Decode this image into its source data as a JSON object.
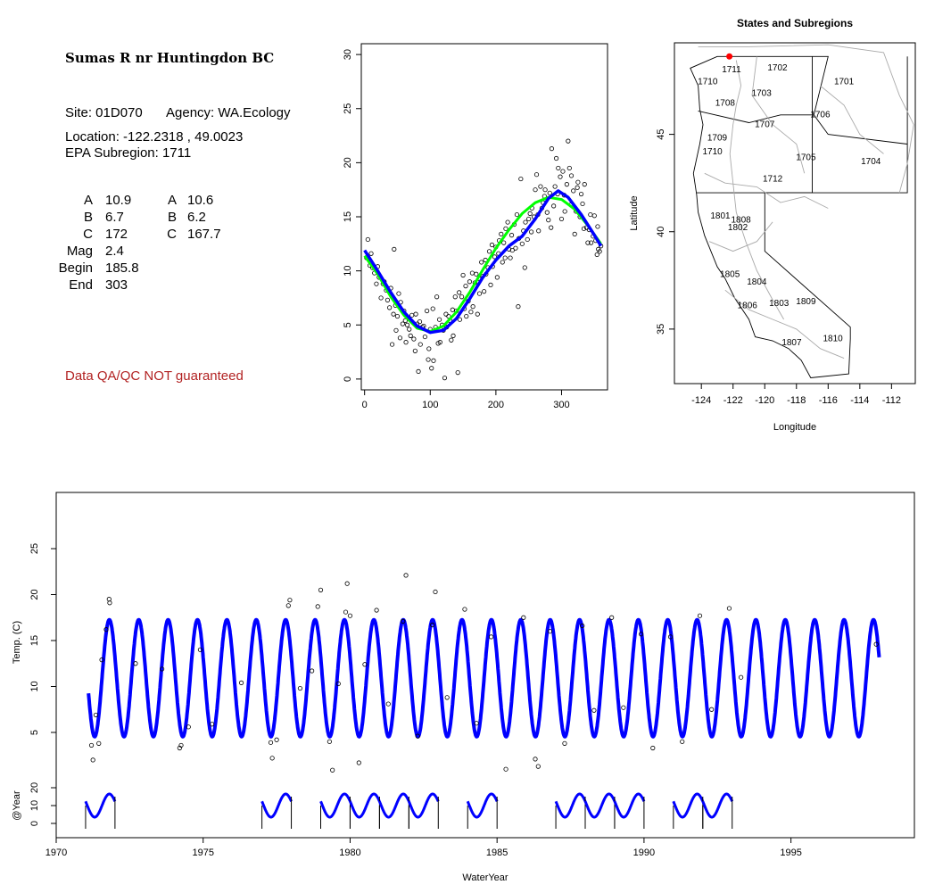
{
  "site": {
    "title": "Sumas R nr Huntingdon BC",
    "site_line": "Site: 01D070",
    "agency_line": "Agency: WA.Ecology",
    "location_line": "Location: -122.2318 , 49.0023",
    "subregion_line": "EPA Subregion: 1711",
    "params_left": [
      {
        "label": "A",
        "value": "10.9"
      },
      {
        "label": "B",
        "value": "6.7"
      },
      {
        "label": "C",
        "value": "172"
      },
      {
        "label": "Mag",
        "value": "2.4"
      },
      {
        "label": "Begin",
        "value": "185.8"
      },
      {
        "label": "End",
        "value": "303"
      }
    ],
    "params_right": [
      {
        "label": "A",
        "value": "10.6"
      },
      {
        "label": "B",
        "value": "6.2"
      },
      {
        "label": "C",
        "value": "167.7"
      }
    ],
    "qa_note": "Data QA/QC NOT guaranteed"
  },
  "colors": {
    "fit_blue": "#0000ff",
    "fit_green": "#00ff00",
    "qa_red": "#b22222",
    "site_marker": "#ff0000",
    "region_border": "#aaaaaa"
  },
  "map": {
    "title": "States and Subregions",
    "xlabel": "Longitude",
    "ylabel": "Latitude",
    "xticks": [
      "-124",
      "-122",
      "-120",
      "-118",
      "-116",
      "-114",
      "-112"
    ],
    "yticks": [
      "35",
      "40",
      "45"
    ],
    "xlim": [
      -125.7,
      -110.5
    ],
    "ylim": [
      32.2,
      49.7
    ],
    "site_marker": {
      "lon": -122.2318,
      "lat": 49.0023
    },
    "region_labels": [
      {
        "label": "1711",
        "lon": -122.1,
        "lat": 48.3
      },
      {
        "label": "1702",
        "lon": -119.2,
        "lat": 48.4
      },
      {
        "label": "1701",
        "lon": -115.0,
        "lat": 47.7
      },
      {
        "label": "1710",
        "lon": -123.6,
        "lat": 47.7
      },
      {
        "label": "1703",
        "lon": -120.2,
        "lat": 47.1
      },
      {
        "label": "1708",
        "lon": -122.5,
        "lat": 46.6
      },
      {
        "label": "1706",
        "lon": -116.5,
        "lat": 46.0
      },
      {
        "label": "1707",
        "lon": -120.0,
        "lat": 45.5
      },
      {
        "label": "1709",
        "lon": -123.0,
        "lat": 44.8
      },
      {
        "label": "1710",
        "lon": -123.3,
        "lat": 44.1
      },
      {
        "label": "1705",
        "lon": -117.4,
        "lat": 43.8
      },
      {
        "label": "1704",
        "lon": -113.3,
        "lat": 43.6
      },
      {
        "label": "1712",
        "lon": -119.5,
        "lat": 42.7
      },
      {
        "label": "1801",
        "lon": -122.8,
        "lat": 40.8
      },
      {
        "label": "1808",
        "lon": -121.5,
        "lat": 40.6
      },
      {
        "label": "1802",
        "lon": -121.7,
        "lat": 40.2
      },
      {
        "label": "1805",
        "lon": -122.2,
        "lat": 37.8
      },
      {
        "label": "1804",
        "lon": -120.5,
        "lat": 37.4
      },
      {
        "label": "1806",
        "lon": -121.1,
        "lat": 36.2
      },
      {
        "label": "1803",
        "lon": -119.1,
        "lat": 36.3
      },
      {
        "label": "1809",
        "lon": -117.4,
        "lat": 36.4
      },
      {
        "label": "1807",
        "lon": -118.3,
        "lat": 34.3
      },
      {
        "label": "1810",
        "lon": -115.7,
        "lat": 34.5
      }
    ]
  },
  "chart_data": [
    {
      "type": "scatter",
      "title": "",
      "xlabel": "",
      "ylabel": "",
      "xlim": [
        -5,
        370
      ],
      "ylim": [
        -1,
        31
      ],
      "xticks": [
        "0",
        "100",
        "200",
        "300"
      ],
      "yticks": [
        "0",
        "5",
        "10",
        "15",
        "20",
        "25",
        "30"
      ],
      "fit_blue": {
        "x": [
          0,
          20,
          40,
          60,
          80,
          100,
          120,
          140,
          160,
          180,
          200,
          220,
          240,
          260,
          280,
          295,
          310,
          330,
          350,
          360
        ],
        "y": [
          11.9,
          10.0,
          8.0,
          6.2,
          4.9,
          4.3,
          4.5,
          5.6,
          7.4,
          9.4,
          11.0,
          12.3,
          13.2,
          14.8,
          16.7,
          17.4,
          16.8,
          15.2,
          13.3,
          12.3
        ]
      },
      "fit_green": {
        "x": [
          0,
          20,
          40,
          60,
          80,
          100,
          120,
          140,
          160,
          180,
          200,
          220,
          240,
          260,
          280,
          300,
          320,
          340,
          360
        ],
        "y": [
          11.4,
          9.7,
          7.6,
          5.9,
          4.7,
          4.4,
          4.9,
          6.2,
          8.0,
          10.1,
          12.1,
          13.8,
          15.3,
          16.3,
          16.8,
          16.6,
          15.7,
          14.2,
          12.5
        ]
      },
      "points": [
        [
          3,
          11.2
        ],
        [
          5,
          12.9
        ],
        [
          8,
          10.5
        ],
        [
          10,
          11.6
        ],
        [
          12,
          10.3
        ],
        [
          15,
          9.8
        ],
        [
          18,
          8.8
        ],
        [
          20,
          10.4
        ],
        [
          22,
          9.4
        ],
        [
          25,
          7.5
        ],
        [
          28,
          8.8
        ],
        [
          30,
          9.0
        ],
        [
          33,
          8.2
        ],
        [
          35,
          7.3
        ],
        [
          38,
          6.6
        ],
        [
          40,
          8.4
        ],
        [
          42,
          3.2
        ],
        [
          44,
          6.0
        ],
        [
          45,
          12.0
        ],
        [
          47,
          6.8
        ],
        [
          48,
          4.5
        ],
        [
          50,
          5.8
        ],
        [
          52,
          7.9
        ],
        [
          54,
          3.8
        ],
        [
          55,
          7.1
        ],
        [
          58,
          5.1
        ],
        [
          60,
          6.3
        ],
        [
          62,
          5.4
        ],
        [
          63,
          3.4
        ],
        [
          65,
          5.0
        ],
        [
          68,
          4.6
        ],
        [
          70,
          4.0
        ],
        [
          72,
          5.9
        ],
        [
          75,
          3.7
        ],
        [
          77,
          2.6
        ],
        [
          78,
          6.0
        ],
        [
          80,
          5.1
        ],
        [
          82,
          0.7
        ],
        [
          84,
          5.3
        ],
        [
          85,
          3.2
        ],
        [
          88,
          4.8
        ],
        [
          90,
          4.9
        ],
        [
          92,
          3.9
        ],
        [
          95,
          6.3
        ],
        [
          97,
          1.8
        ],
        [
          98,
          2.8
        ],
        [
          100,
          4.6
        ],
        [
          102,
          1.0
        ],
        [
          104,
          6.5
        ],
        [
          105,
          1.7
        ],
        [
          108,
          4.8
        ],
        [
          110,
          7.6
        ],
        [
          112,
          3.3
        ],
        [
          114,
          5.5
        ],
        [
          115,
          3.4
        ],
        [
          118,
          5.0
        ],
        [
          120,
          4.5
        ],
        [
          122,
          0.1
        ],
        [
          124,
          6.0
        ],
        [
          125,
          4.8
        ],
        [
          128,
          5.8
        ],
        [
          130,
          5.4
        ],
        [
          132,
          3.6
        ],
        [
          134,
          6.4
        ],
        [
          135,
          4.0
        ],
        [
          138,
          7.6
        ],
        [
          140,
          6.3
        ],
        [
          142,
          0.6
        ],
        [
          144,
          8.0
        ],
        [
          145,
          5.5
        ],
        [
          148,
          7.6
        ],
        [
          150,
          9.6
        ],
        [
          152,
          6.5
        ],
        [
          154,
          8.6
        ],
        [
          155,
          5.8
        ],
        [
          158,
          7.2
        ],
        [
          160,
          9.0
        ],
        [
          162,
          6.2
        ],
        [
          164,
          9.8
        ],
        [
          165,
          6.7
        ],
        [
          168,
          8.9
        ],
        [
          170,
          9.7
        ],
        [
          172,
          6.0
        ],
        [
          174,
          9.3
        ],
        [
          175,
          7.9
        ],
        [
          178,
          10.8
        ],
        [
          180,
          9.5
        ],
        [
          182,
          8.1
        ],
        [
          184,
          11.0
        ],
        [
          185,
          9.7
        ],
        [
          188,
          10.3
        ],
        [
          190,
          11.8
        ],
        [
          192,
          8.7
        ],
        [
          194,
          12.4
        ],
        [
          195,
          10.4
        ],
        [
          198,
          11.3
        ],
        [
          200,
          12.2
        ],
        [
          202,
          9.4
        ],
        [
          204,
          11.6
        ],
        [
          205,
          12.8
        ],
        [
          208,
          13.4
        ],
        [
          210,
          10.8
        ],
        [
          212,
          12.6
        ],
        [
          214,
          11.2
        ],
        [
          215,
          13.9
        ],
        [
          218,
          14.5
        ],
        [
          220,
          12.0
        ],
        [
          222,
          11.2
        ],
        [
          224,
          13.3
        ],
        [
          225,
          11.9
        ],
        [
          228,
          14.3
        ],
        [
          230,
          12.1
        ],
        [
          232,
          15.2
        ],
        [
          234,
          6.7
        ],
        [
          235,
          13.0
        ],
        [
          238,
          18.5
        ],
        [
          240,
          12.5
        ],
        [
          242,
          13.7
        ],
        [
          244,
          10.3
        ],
        [
          245,
          14.5
        ],
        [
          248,
          12.9
        ],
        [
          250,
          14.8
        ],
        [
          252,
          15.3
        ],
        [
          254,
          13.6
        ],
        [
          255,
          15.8
        ],
        [
          258,
          15.0
        ],
        [
          260,
          17.5
        ],
        [
          262,
          18.9
        ],
        [
          264,
          15.2
        ],
        [
          265,
          13.7
        ],
        [
          268,
          17.8
        ],
        [
          270,
          15.8
        ],
        [
          272,
          16.3
        ],
        [
          274,
          16.9
        ],
        [
          275,
          17.5
        ],
        [
          278,
          15.4
        ],
        [
          280,
          14.7
        ],
        [
          282,
          17.2
        ],
        [
          284,
          14.0
        ],
        [
          285,
          21.3
        ],
        [
          288,
          16.0
        ],
        [
          290,
          17.8
        ],
        [
          292,
          20.4
        ],
        [
          294,
          17.1
        ],
        [
          295,
          19.5
        ],
        [
          298,
          18.7
        ],
        [
          300,
          14.8
        ],
        [
          302,
          19.2
        ],
        [
          304,
          17.0
        ],
        [
          305,
          15.5
        ],
        [
          308,
          18.0
        ],
        [
          310,
          22.0
        ],
        [
          312,
          19.5
        ],
        [
          314,
          16.1
        ],
        [
          315,
          18.8
        ],
        [
          318,
          17.4
        ],
        [
          320,
          13.4
        ],
        [
          322,
          15.5
        ],
        [
          324,
          17.7
        ],
        [
          325,
          18.2
        ],
        [
          328,
          15.0
        ],
        [
          330,
          17.1
        ],
        [
          332,
          16.2
        ],
        [
          334,
          13.9
        ],
        [
          335,
          18.0
        ],
        [
          338,
          14.0
        ],
        [
          340,
          12.6
        ],
        [
          342,
          13.8
        ],
        [
          344,
          15.2
        ],
        [
          345,
          12.6
        ],
        [
          348,
          13.2
        ],
        [
          350,
          15.1
        ],
        [
          352,
          12.8
        ],
        [
          354,
          11.5
        ],
        [
          355,
          14.1
        ],
        [
          356,
          12.0
        ],
        [
          358,
          11.8
        ],
        [
          360,
          12.3
        ]
      ]
    },
    {
      "type": "line",
      "title": "",
      "xlabel": "WaterYear",
      "ylabel": "Temp. (C)",
      "xlim": [
        1970,
        1999.2
      ],
      "ylim": [
        0,
        30
      ],
      "yticks": [
        "5",
        "10",
        "15",
        "20",
        "25"
      ],
      "xticks": [
        "1970",
        "1975",
        "1980",
        "1985",
        "1990",
        "1995"
      ],
      "fit": {
        "x_start": 1971.1,
        "x_end": 1998.0,
        "A": 10.9,
        "B": 6.7,
        "peak_day": 295,
        "period_days": 365
      },
      "points": [
        [
          1971.2,
          3.6
        ],
        [
          1971.25,
          2.0
        ],
        [
          1971.35,
          6.9
        ],
        [
          1971.45,
          3.8
        ],
        [
          1971.55,
          12.9
        ],
        [
          1971.7,
          16.2
        ],
        [
          1971.8,
          19.5
        ],
        [
          1971.82,
          19.1
        ],
        [
          1972.7,
          12.5
        ],
        [
          1973.6,
          11.9
        ],
        [
          1974.2,
          3.3
        ],
        [
          1974.25,
          3.6
        ],
        [
          1974.5,
          5.6
        ],
        [
          1974.9,
          14.0
        ],
        [
          1975.3,
          5.9
        ],
        [
          1976.3,
          10.4
        ],
        [
          1977.3,
          3.9
        ],
        [
          1977.35,
          2.2
        ],
        [
          1977.5,
          4.2
        ],
        [
          1977.9,
          18.8
        ],
        [
          1977.95,
          19.4
        ],
        [
          1978.3,
          9.8
        ],
        [
          1978.7,
          11.7
        ],
        [
          1978.9,
          18.7
        ],
        [
          1979.0,
          20.5
        ],
        [
          1979.3,
          4.0
        ],
        [
          1979.4,
          0.9
        ],
        [
          1979.6,
          10.3
        ],
        [
          1979.85,
          18.1
        ],
        [
          1979.9,
          21.2
        ],
        [
          1980.0,
          17.7
        ],
        [
          1980.3,
          1.7
        ],
        [
          1980.5,
          12.4
        ],
        [
          1980.9,
          18.3
        ],
        [
          1981.3,
          8.1
        ],
        [
          1981.8,
          17.1
        ],
        [
          1981.9,
          22.1
        ],
        [
          1982.3,
          4.6
        ],
        [
          1982.8,
          16.7
        ],
        [
          1982.9,
          20.3
        ],
        [
          1983.3,
          8.8
        ],
        [
          1983.9,
          18.4
        ],
        [
          1984.3,
          6.0
        ],
        [
          1984.8,
          15.4
        ],
        [
          1985.3,
          1.0
        ],
        [
          1985.9,
          17.5
        ],
        [
          1986.3,
          2.1
        ],
        [
          1986.4,
          1.3
        ],
        [
          1986.8,
          16.0
        ],
        [
          1987.3,
          3.8
        ],
        [
          1987.9,
          16.6
        ],
        [
          1988.3,
          7.4
        ],
        [
          1988.9,
          17.5
        ],
        [
          1989.3,
          7.7
        ],
        [
          1989.9,
          15.7
        ],
        [
          1990.3,
          3.3
        ],
        [
          1990.9,
          15.4
        ],
        [
          1991.3,
          4.0
        ],
        [
          1991.9,
          17.7
        ],
        [
          1992.3,
          7.5
        ],
        [
          1992.9,
          18.5
        ],
        [
          1993.3,
          11.0
        ],
        [
          1997.9,
          14.6
        ]
      ],
      "year_panel": {
        "ylabel": "@Year",
        "yticks": [
          "0",
          "10",
          "20"
        ],
        "years": [
          1971,
          1977,
          1979,
          1980,
          1981,
          1982,
          1984,
          1987,
          1988,
          1989,
          1991,
          1992
        ]
      }
    }
  ]
}
